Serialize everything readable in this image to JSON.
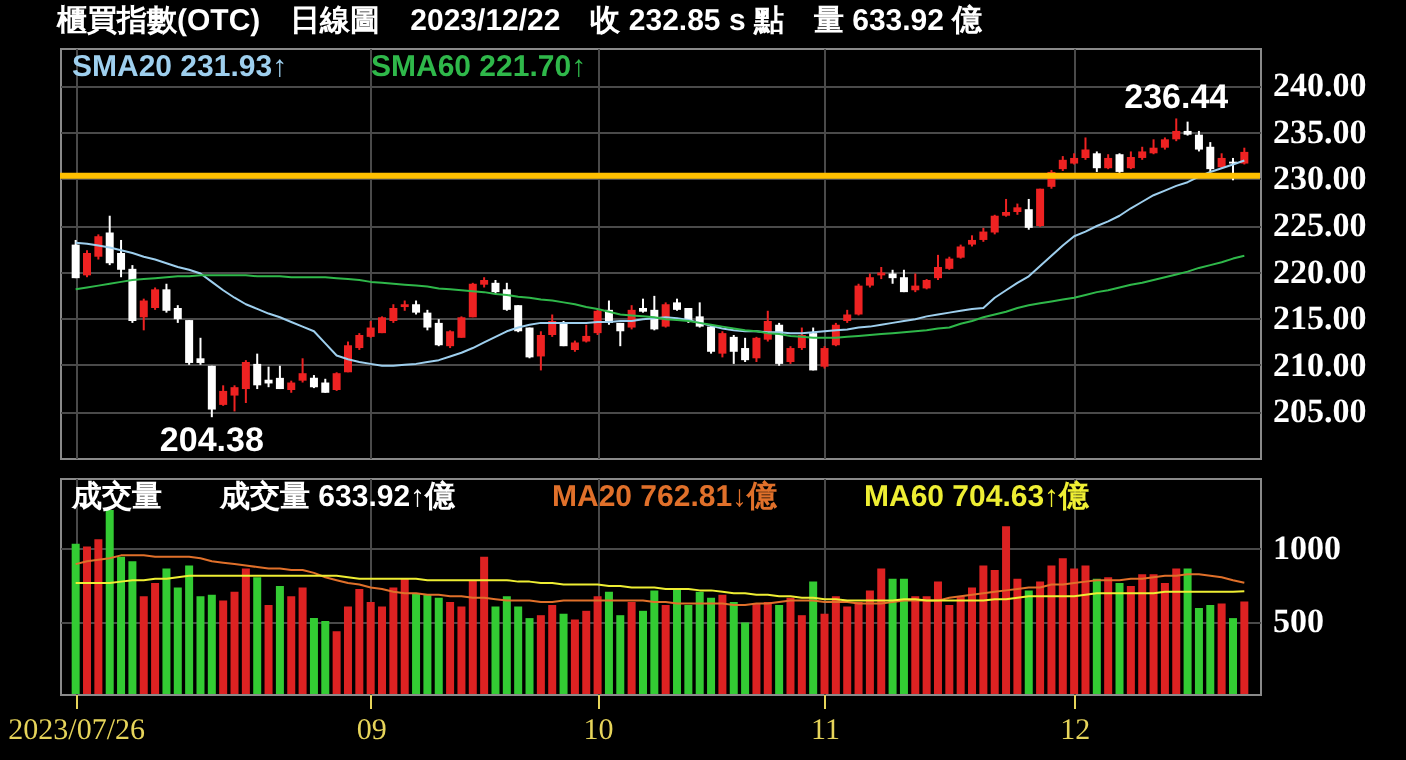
{
  "chart_data": [
    {
      "type": "candlestick",
      "title": "櫃買指數(OTC)　日線圖　2023/12/22　收 232.85 s 點　量 633.92 億",
      "categories": [
        "2023/07/26",
        null,
        null,
        null,
        null,
        null,
        null,
        null,
        null,
        null,
        null,
        null,
        null,
        null,
        null,
        null,
        null,
        null,
        null,
        null,
        null,
        null,
        null,
        null,
        null,
        null,
        "09",
        null,
        null,
        null,
        null,
        null,
        null,
        null,
        null,
        null,
        null,
        null,
        null,
        null,
        null,
        null,
        null,
        null,
        null,
        null,
        "10",
        null,
        null,
        null,
        null,
        null,
        null,
        null,
        null,
        null,
        null,
        null,
        null,
        null,
        null,
        null,
        null,
        null,
        null,
        null,
        "11",
        null,
        null,
        null,
        null,
        null,
        null,
        null,
        null,
        null,
        null,
        null,
        null,
        null,
        null,
        null,
        null,
        null,
        null,
        null,
        null,
        null,
        "12",
        null,
        null,
        null,
        null,
        null,
        null,
        null,
        null,
        null,
        null,
        null,
        null,
        null,
        null,
        null
      ],
      "ohlc": [
        [
          222.9,
          223.4,
          219.3,
          219.3
        ],
        [
          219.6,
          222.3,
          219.4,
          222.0
        ],
        [
          221.6,
          224.0,
          221.3,
          223.8
        ],
        [
          224.2,
          226.0,
          220.7,
          220.9
        ],
        [
          222.0,
          223.4,
          219.4,
          220.2
        ],
        [
          220.3,
          220.7,
          214.5,
          214.7
        ],
        [
          215.1,
          217.1,
          213.7,
          216.9
        ],
        [
          216.1,
          218.3,
          215.9,
          218.1
        ],
        [
          218.1,
          218.7,
          215.6,
          215.8
        ],
        [
          216.1,
          216.4,
          214.5,
          214.9
        ],
        [
          214.8,
          214.8,
          210.0,
          210.2
        ],
        [
          210.7,
          212.9,
          210.0,
          210.2
        ],
        [
          209.9,
          209.9,
          204.38,
          205.2
        ],
        [
          205.7,
          207.8,
          205.6,
          207.2
        ],
        [
          206.7,
          207.8,
          205.0,
          207.6
        ],
        [
          207.4,
          210.5,
          205.9,
          210.3
        ],
        [
          210.1,
          211.2,
          207.4,
          207.8
        ],
        [
          208.4,
          209.8,
          207.6,
          208.0
        ],
        [
          208.6,
          209.9,
          207.4,
          207.4
        ],
        [
          207.3,
          208.3,
          207.0,
          208.1
        ],
        [
          208.3,
          210.7,
          208.1,
          209.1
        ],
        [
          208.6,
          208.9,
          207.5,
          207.6
        ],
        [
          208.1,
          208.5,
          207.0,
          207.0
        ],
        [
          207.3,
          209.2,
          207.2,
          209.1
        ],
        [
          209.2,
          212.5,
          209.2,
          212.1
        ],
        [
          211.8,
          213.4,
          211.6,
          213.2
        ],
        [
          213.0,
          214.7,
          212.9,
          214.0
        ],
        [
          213.4,
          215.2,
          213.4,
          215.1
        ],
        [
          214.7,
          216.5,
          214.5,
          216.1
        ],
        [
          216.2,
          216.9,
          215.8,
          216.5
        ],
        [
          216.5,
          216.9,
          215.4,
          215.6
        ],
        [
          215.6,
          215.9,
          213.7,
          214.0
        ],
        [
          214.5,
          214.9,
          212.0,
          212.1
        ],
        [
          212.0,
          213.7,
          211.8,
          213.6
        ],
        [
          212.9,
          215.2,
          212.9,
          215.1
        ],
        [
          215.1,
          218.8,
          215.1,
          218.7
        ],
        [
          218.6,
          219.4,
          218.3,
          219.1
        ],
        [
          218.8,
          219.1,
          217.6,
          217.8
        ],
        [
          218.1,
          218.8,
          215.8,
          215.9
        ],
        [
          216.4,
          216.4,
          213.5,
          213.6
        ],
        [
          214.0,
          214.0,
          210.7,
          210.8
        ],
        [
          210.9,
          213.6,
          209.4,
          213.2
        ],
        [
          213.2,
          215.4,
          213.0,
          214.7
        ],
        [
          214.5,
          214.7,
          212.0,
          212.0
        ],
        [
          211.6,
          212.6,
          211.4,
          212.4
        ],
        [
          212.5,
          214.3,
          212.4,
          213.1
        ],
        [
          213.4,
          216.0,
          213.2,
          215.8
        ],
        [
          215.9,
          216.9,
          214.3,
          214.5
        ],
        [
          214.5,
          214.5,
          212.0,
          213.6
        ],
        [
          214.0,
          216.4,
          213.8,
          215.9
        ],
        [
          216.1,
          217.1,
          215.6,
          215.7
        ],
        [
          215.9,
          217.4,
          213.7,
          213.8
        ],
        [
          214.1,
          216.7,
          214.0,
          216.5
        ],
        [
          216.7,
          217.1,
          215.8,
          215.9
        ],
        [
          216.1,
          216.1,
          214.5,
          214.7
        ],
        [
          215.2,
          216.7,
          214.0,
          214.1
        ],
        [
          214.1,
          214.3,
          211.2,
          211.4
        ],
        [
          211.2,
          213.6,
          210.8,
          213.4
        ],
        [
          213.0,
          213.2,
          210.1,
          211.4
        ],
        [
          211.8,
          212.9,
          210.3,
          210.5
        ],
        [
          210.7,
          213.0,
          210.3,
          212.9
        ],
        [
          212.7,
          215.8,
          212.5,
          214.7
        ],
        [
          214.3,
          214.5,
          209.9,
          210.1
        ],
        [
          210.3,
          212.0,
          210.1,
          211.8
        ],
        [
          211.8,
          214.0,
          211.6,
          213.2
        ],
        [
          213.4,
          214.0,
          209.4,
          209.4
        ],
        [
          209.8,
          212.0,
          209.6,
          211.8
        ],
        [
          212.1,
          214.5,
          212.0,
          214.3
        ],
        [
          214.7,
          215.9,
          214.5,
          215.4
        ],
        [
          215.4,
          218.7,
          215.3,
          218.5
        ],
        [
          218.5,
          219.8,
          218.3,
          219.4
        ],
        [
          219.6,
          220.5,
          219.2,
          219.9
        ],
        [
          219.8,
          220.2,
          218.7,
          219.3
        ],
        [
          219.4,
          220.2,
          217.8,
          217.8
        ],
        [
          218.0,
          219.8,
          217.8,
          218.5
        ],
        [
          218.2,
          219.2,
          218.1,
          219.1
        ],
        [
          219.3,
          221.8,
          219.1,
          220.5
        ],
        [
          220.3,
          221.6,
          220.2,
          221.4
        ],
        [
          221.5,
          222.9,
          221.4,
          222.7
        ],
        [
          222.9,
          223.9,
          222.7,
          223.4
        ],
        [
          223.4,
          224.7,
          223.2,
          224.3
        ],
        [
          224.2,
          226.1,
          224.0,
          226.0
        ],
        [
          226.0,
          227.8,
          225.9,
          226.4
        ],
        [
          226.4,
          227.3,
          226.1,
          226.9
        ],
        [
          226.7,
          227.8,
          224.5,
          224.7
        ],
        [
          224.9,
          228.9,
          224.8,
          228.9
        ],
        [
          229.1,
          230.9,
          228.9,
          230.7
        ],
        [
          231.0,
          232.4,
          230.8,
          232.0
        ],
        [
          231.6,
          232.7,
          231.5,
          232.2
        ],
        [
          232.2,
          234.4,
          232.0,
          233.1
        ],
        [
          232.7,
          232.9,
          230.7,
          231.1
        ],
        [
          231.1,
          232.6,
          231.0,
          232.2
        ],
        [
          232.6,
          232.7,
          230.6,
          230.7
        ],
        [
          231.1,
          232.9,
          231.0,
          232.3
        ],
        [
          232.2,
          233.4,
          232.0,
          232.9
        ],
        [
          232.7,
          234.2,
          232.6,
          233.3
        ],
        [
          233.3,
          234.4,
          233.1,
          234.2
        ],
        [
          234.2,
          236.44,
          234.0,
          235.1
        ],
        [
          235.1,
          236.1,
          234.6,
          234.7
        ],
        [
          234.7,
          235.1,
          232.9,
          233.1
        ],
        [
          233.4,
          233.9,
          230.7,
          231.0
        ],
        [
          231.2,
          232.7,
          231.1,
          232.2
        ],
        [
          231.8,
          232.2,
          229.8,
          231.6
        ],
        [
          231.6,
          233.3,
          231.5,
          232.85
        ]
      ],
      "colors": [
        "#ffffff",
        "#ee2222",
        "#ee2222",
        "#ffffff",
        "#ffffff",
        "#ffffff",
        "#ee2222",
        "#ee2222",
        "#ffffff",
        "#ffffff",
        "#ffffff",
        "#ffffff",
        "#ffffff",
        "#ee2222",
        "#ee2222",
        "#ee2222",
        "#ffffff",
        "#ffffff",
        "#ffffff",
        "#ee2222",
        "#ee2222",
        "#ffffff",
        "#ffffff",
        "#ee2222",
        "#ee2222",
        "#ee2222",
        "#ee2222",
        "#ee2222",
        "#ee2222",
        "#ee2222",
        "#ffffff",
        "#ffffff",
        "#ffffff",
        "#ee2222",
        "#ee2222",
        "#ee2222",
        "#ee2222",
        "#ffffff",
        "#ffffff",
        "#ffffff",
        "#ffffff",
        "#ee2222",
        "#ee2222",
        "#ffffff",
        "#ee2222",
        "#ee2222",
        "#ee2222",
        "#ffffff",
        "#ffffff",
        "#ee2222",
        "#ffffff",
        "#ffffff",
        "#ee2222",
        "#ffffff",
        "#ffffff",
        "#ffffff",
        "#ffffff",
        "#ee2222",
        "#ffffff",
        "#ffffff",
        "#ee2222",
        "#ee2222",
        "#ffffff",
        "#ee2222",
        "#ee2222",
        "#ffffff",
        "#ee2222",
        "#ee2222",
        "#ee2222",
        "#ee2222",
        "#ee2222",
        "#ee2222",
        "#ffffff",
        "#ffffff",
        "#ee2222",
        "#ee2222",
        "#ee2222",
        "#ee2222",
        "#ee2222",
        "#ee2222",
        "#ee2222",
        "#ee2222",
        "#ee2222",
        "#ee2222",
        "#ffffff",
        "#ee2222",
        "#ee2222",
        "#ee2222",
        "#ee2222",
        "#ee2222",
        "#ffffff",
        "#ee2222",
        "#ffffff",
        "#ee2222",
        "#ee2222",
        "#ee2222",
        "#ee2222",
        "#ee2222",
        "#ffffff",
        "#ffffff",
        "#ffffff",
        "#ee2222",
        "#ffffff",
        "#ee2222"
      ],
      "series": [
        {
          "name": "SMA20 231.93↑",
          "type": "line",
          "color": "#9ecfee",
          "values": [
            223.1,
            223.0,
            222.8,
            222.6,
            222.3,
            222.0,
            221.6,
            221.3,
            220.9,
            220.5,
            220.2,
            219.8,
            218.9,
            218.0,
            217.2,
            216.5,
            216.0,
            215.5,
            215.1,
            214.6,
            214.1,
            213.6,
            212.3,
            211.0,
            210.6,
            210.3,
            210.1,
            209.9,
            209.9,
            210.0,
            210.1,
            210.3,
            210.5,
            210.9,
            211.3,
            211.8,
            212.4,
            213.0,
            213.6,
            214.0,
            214.3,
            214.5,
            214.5,
            214.5,
            214.5,
            214.5,
            214.6,
            214.6,
            214.7,
            214.7,
            214.9,
            215.0,
            215.1,
            215.0,
            214.8,
            214.5,
            214.2,
            213.9,
            213.7,
            213.6,
            213.6,
            213.5,
            213.5,
            213.4,
            213.4,
            213.5,
            213.6,
            213.7,
            213.8,
            214.0,
            214.1,
            214.3,
            214.5,
            214.7,
            214.9,
            215.2,
            215.4,
            215.6,
            215.8,
            216.0,
            216.1,
            217.2,
            218.0,
            218.8,
            219.5,
            220.6,
            221.7,
            222.8,
            223.8,
            224.3,
            224.9,
            225.4,
            226.0,
            226.8,
            227.5,
            228.2,
            228.7,
            229.2,
            229.6,
            230.2,
            230.7,
            231.1,
            231.5,
            231.93
          ]
        },
        {
          "name": "SMA60 221.70↑",
          "type": "line",
          "color": "#2fb84a",
          "values": [
            218.1,
            218.3,
            218.5,
            218.7,
            218.9,
            219.1,
            219.2,
            219.3,
            219.4,
            219.5,
            219.5,
            219.6,
            219.6,
            219.6,
            219.6,
            219.6,
            219.5,
            219.5,
            219.5,
            219.4,
            219.4,
            219.4,
            219.4,
            219.3,
            219.2,
            219.1,
            218.9,
            218.8,
            218.7,
            218.6,
            218.5,
            218.4,
            218.2,
            218.1,
            218.0,
            217.9,
            217.8,
            217.6,
            217.5,
            217.3,
            217.2,
            217.0,
            216.9,
            216.7,
            216.5,
            216.2,
            216.0,
            215.7,
            215.4,
            215.3,
            215.2,
            215.1,
            214.9,
            214.8,
            214.7,
            214.5,
            214.3,
            214.1,
            213.9,
            213.7,
            213.6,
            213.4,
            213.3,
            213.1,
            213.0,
            212.9,
            212.9,
            212.9,
            213.0,
            213.1,
            213.2,
            213.3,
            213.4,
            213.5,
            213.6,
            213.7,
            213.9,
            214.0,
            214.4,
            214.7,
            215.1,
            215.4,
            215.7,
            216.1,
            216.4,
            216.6,
            216.8,
            217.0,
            217.2,
            217.5,
            217.8,
            218.0,
            218.3,
            218.6,
            218.8,
            219.1,
            219.4,
            219.7,
            220.0,
            220.4,
            220.7,
            221.0,
            221.4,
            221.7
          ]
        }
      ],
      "annotations": [
        {
          "text": "236.44",
          "y": 236.44
        },
        {
          "text": "204.38",
          "y": 204.38
        }
      ],
      "ref_lines": [
        {
          "axis": "y",
          "value": 230.3,
          "color": "#ffc000"
        }
      ],
      "ylim": [
        200,
        244
      ],
      "yticks": [
        {
          "value": 205,
          "label": "205.00"
        },
        {
          "value": 210,
          "label": "210.00"
        },
        {
          "value": 215,
          "label": "215.00"
        },
        {
          "value": 220,
          "label": "220.00"
        },
        {
          "value": 225,
          "label": "225.00"
        },
        {
          "value": 230,
          "label": "230.00"
        },
        {
          "value": 235,
          "label": "235.00"
        },
        {
          "value": 240,
          "label": "240.00"
        }
      ],
      "grid": true,
      "legend": "top left",
      "tick_labels": "y"
    },
    {
      "type": "bar",
      "title": "成交量",
      "annotations": [
        "成交量 633.92↑億"
      ],
      "categories": [
        "2023/07/26",
        null,
        null,
        null,
        null,
        null,
        null,
        null,
        null,
        null,
        null,
        null,
        null,
        null,
        null,
        null,
        null,
        null,
        null,
        null,
        null,
        null,
        null,
        null,
        null,
        null,
        "09",
        null,
        null,
        null,
        null,
        null,
        null,
        null,
        null,
        null,
        null,
        null,
        null,
        null,
        null,
        null,
        null,
        null,
        null,
        null,
        "10",
        null,
        null,
        null,
        null,
        null,
        null,
        null,
        null,
        null,
        null,
        null,
        null,
        null,
        null,
        null,
        null,
        null,
        null,
        null,
        "11",
        null,
        null,
        null,
        null,
        null,
        null,
        null,
        null,
        null,
        null,
        null,
        null,
        null,
        null,
        null,
        null,
        null,
        null,
        null,
        null,
        null,
        "12",
        null,
        null,
        null,
        null,
        null,
        null,
        null,
        null,
        null,
        null,
        null,
        null,
        null,
        null,
        null
      ],
      "series": [
        {
          "type": "bar",
          "values": [
            1030,
            1010,
            1060,
            1260,
            940,
            910,
            670,
            760,
            860,
            730,
            880,
            670,
            680,
            640,
            700,
            860,
            800,
            610,
            740,
            670,
            730,
            520,
            500,
            430,
            600,
            720,
            630,
            600,
            730,
            790,
            690,
            680,
            660,
            630,
            600,
            780,
            940,
            600,
            670,
            600,
            520,
            540,
            610,
            550,
            510,
            570,
            670,
            700,
            540,
            630,
            570,
            710,
            610,
            720,
            610,
            700,
            660,
            680,
            630,
            490,
            620,
            630,
            610,
            660,
            540,
            770,
            550,
            670,
            600,
            630,
            710,
            860,
            790,
            790,
            670,
            670,
            770,
            610,
            670,
            730,
            880,
            850,
            1150,
            790,
            710,
            770,
            880,
            930,
            860,
            880,
            790,
            800,
            760,
            740,
            820,
            820,
            760,
            860,
            860,
            590,
            610,
            620,
            520,
            633.92
          ],
          "colors": [
            "#33cc33",
            "#dd2222",
            "#dd2222",
            "#33cc33",
            "#33cc33",
            "#33cc33",
            "#dd2222",
            "#dd2222",
            "#33cc33",
            "#33cc33",
            "#33cc33",
            "#33cc33",
            "#33cc33",
            "#dd2222",
            "#dd2222",
            "#dd2222",
            "#33cc33",
            "#dd2222",
            "#33cc33",
            "#dd2222",
            "#dd2222",
            "#33cc33",
            "#33cc33",
            "#dd2222",
            "#dd2222",
            "#dd2222",
            "#dd2222",
            "#dd2222",
            "#dd2222",
            "#dd2222",
            "#33cc33",
            "#33cc33",
            "#33cc33",
            "#dd2222",
            "#dd2222",
            "#dd2222",
            "#dd2222",
            "#33cc33",
            "#33cc33",
            "#33cc33",
            "#33cc33",
            "#dd2222",
            "#dd2222",
            "#33cc33",
            "#dd2222",
            "#dd2222",
            "#dd2222",
            "#33cc33",
            "#33cc33",
            "#dd2222",
            "#33cc33",
            "#33cc33",
            "#dd2222",
            "#33cc33",
            "#33cc33",
            "#33cc33",
            "#33cc33",
            "#dd2222",
            "#33cc33",
            "#33cc33",
            "#dd2222",
            "#dd2222",
            "#33cc33",
            "#dd2222",
            "#dd2222",
            "#33cc33",
            "#dd2222",
            "#dd2222",
            "#dd2222",
            "#dd2222",
            "#dd2222",
            "#dd2222",
            "#33cc33",
            "#33cc33",
            "#dd2222",
            "#dd2222",
            "#dd2222",
            "#dd2222",
            "#dd2222",
            "#dd2222",
            "#dd2222",
            "#dd2222",
            "#dd2222",
            "#dd2222",
            "#33cc33",
            "#dd2222",
            "#dd2222",
            "#dd2222",
            "#dd2222",
            "#dd2222",
            "#33cc33",
            "#dd2222",
            "#33cc33",
            "#dd2222",
            "#dd2222",
            "#dd2222",
            "#dd2222",
            "#dd2222",
            "#33cc33",
            "#33cc33",
            "#33cc33",
            "#dd2222",
            "#33cc33",
            "#dd2222"
          ]
        },
        {
          "name": "MA20 762.81↓億",
          "type": "line",
          "color": "#e0702a",
          "values": [
            890,
            910,
            920,
            930,
            950,
            950,
            950,
            940,
            940,
            940,
            940,
            930,
            910,
            900,
            890,
            880,
            870,
            860,
            860,
            850,
            850,
            830,
            800,
            780,
            760,
            750,
            730,
            720,
            700,
            690,
            690,
            680,
            680,
            670,
            670,
            660,
            660,
            650,
            640,
            640,
            640,
            630,
            630,
            640,
            640,
            640,
            640,
            640,
            640,
            640,
            640,
            630,
            630,
            620,
            620,
            620,
            620,
            620,
            610,
            610,
            620,
            620,
            630,
            640,
            640,
            640,
            630,
            630,
            630,
            620,
            620,
            620,
            630,
            640,
            640,
            640,
            640,
            660,
            670,
            680,
            690,
            700,
            710,
            720,
            730,
            730,
            750,
            750,
            760,
            770,
            780,
            780,
            780,
            790,
            790,
            800,
            810,
            810,
            820,
            820,
            810,
            800,
            780,
            762.81
          ]
        },
        {
          "name": "MA60 704.63↑億",
          "type": "line",
          "color": "#eeee33",
          "values": [
            760,
            760,
            760,
            760,
            770,
            780,
            780,
            790,
            790,
            800,
            810,
            810,
            810,
            810,
            810,
            810,
            810,
            810,
            810,
            810,
            810,
            810,
            810,
            810,
            800,
            790,
            790,
            790,
            790,
            790,
            790,
            780,
            780,
            780,
            780,
            780,
            780,
            780,
            780,
            770,
            770,
            760,
            760,
            750,
            750,
            750,
            750,
            740,
            740,
            730,
            730,
            730,
            720,
            720,
            720,
            710,
            710,
            700,
            690,
            690,
            680,
            680,
            670,
            670,
            660,
            660,
            650,
            650,
            640,
            640,
            640,
            640,
            640,
            650,
            650,
            640,
            640,
            640,
            640,
            640,
            640,
            650,
            650,
            660,
            670,
            670,
            670,
            670,
            670,
            680,
            690,
            690,
            690,
            690,
            690,
            690,
            700,
            700,
            700,
            700,
            700,
            700,
            700,
            704.63
          ]
        }
      ],
      "ylim": [
        0,
        1480
      ],
      "yticks": [
        500,
        1000
      ],
      "grid": true,
      "legend": "top"
    }
  ]
}
